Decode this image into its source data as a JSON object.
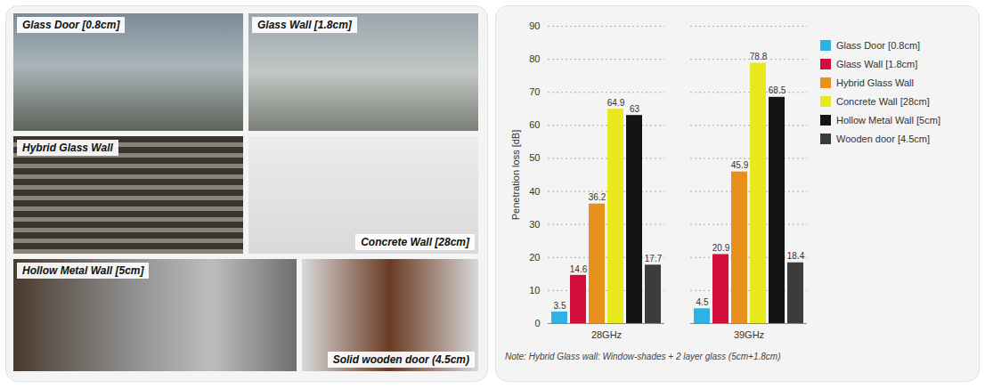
{
  "chart_data": {
    "type": "bar",
    "categories": [
      "28GHz",
      "39GHz"
    ],
    "series": [
      {
        "name": "Glass Door [0.8cm]",
        "color": "#2ab4e6",
        "values": [
          3.5,
          4.5
        ]
      },
      {
        "name": "Glass Wall [1.8cm]",
        "color": "#d20f3c",
        "values": [
          14.6,
          20.9
        ]
      },
      {
        "name": "Hybrid Glass Wall",
        "color": "#e8901c",
        "values": [
          36.2,
          45.9
        ]
      },
      {
        "name": "Concrete Wall [28cm]",
        "color": "#e8e81e",
        "values": [
          64.9,
          78.8
        ]
      },
      {
        "name": "Hollow Metal Wall [5cm]",
        "color": "#141414",
        "values": [
          63,
          68.5
        ]
      },
      {
        "name": "Wooden door [4.5cm]",
        "color": "#3c3c3c",
        "values": [
          17.7,
          18.4
        ]
      }
    ],
    "ylabel": "Penetration loss [dB]",
    "ylim": [
      0,
      90
    ],
    "yticks": [
      0,
      10,
      20,
      30,
      40,
      50,
      60,
      70,
      80,
      90
    ],
    "grid": true,
    "data_labels": true,
    "legend": "right",
    "annotations": [
      "Note: Hybrid Glass wall: Window-shades + 2 layer glass (5cm+1.8cm)"
    ]
  },
  "photo_panel": {
    "labels": [
      "Glass Door [0.8cm]",
      "Glass Wall [1.8cm]",
      "Hybrid Glass Wall",
      "Concrete Wall [28cm]",
      "Hollow Metal Wall [5cm]",
      "Solid wooden door (4.5cm)"
    ]
  }
}
